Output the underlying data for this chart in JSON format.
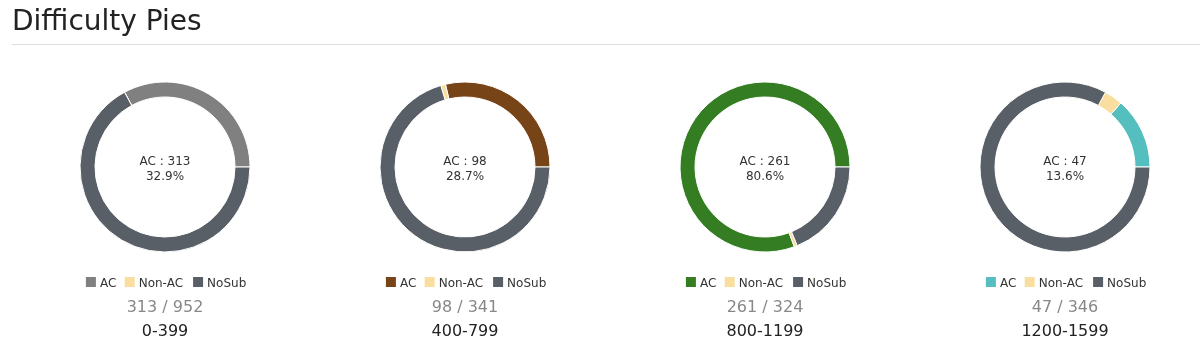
{
  "chart_data": [
    {
      "type": "donut",
      "title": "0-399",
      "categories": [
        "AC",
        "Non-AC",
        "NoSub"
      ],
      "values": [
        32.9,
        0,
        67.1
      ],
      "colors": [
        "#808080",
        "#f9de9f",
        "#595f66"
      ],
      "legend": "bottom",
      "annotations": [
        "Difficulty Pies",
        "AC : 313",
        "32.9%",
        "313 / 952"
      ]
    },
    {
      "type": "donut",
      "title": "400-799",
      "categories": [
        "AC",
        "Non-AC",
        "NoSub"
      ],
      "values": [
        28.7,
        0.9,
        70.4
      ],
      "colors": [
        "#774417",
        "#f9de9f",
        "#595f66"
      ],
      "legend": "bottom",
      "annotations": [
        "AC : 98",
        "28.7%",
        "98 / 341"
      ]
    },
    {
      "type": "donut",
      "title": "800-1199",
      "categories": [
        "AC",
        "Non-AC",
        "NoSub"
      ],
      "values": [
        80.6,
        0.6,
        18.8
      ],
      "colors": [
        "#357d22",
        "#f9de9f",
        "#595f66"
      ],
      "legend": "bottom",
      "annotations": [
        "AC : 261",
        "80.6%",
        "261 / 324"
      ]
    },
    {
      "type": "donut",
      "title": "1200-1599",
      "categories": [
        "AC",
        "Non-AC",
        "NoSub"
      ],
      "values": [
        13.6,
        3.5,
        82.9
      ],
      "colors": [
        "#55bfc0",
        "#f9de9f",
        "#595f66"
      ],
      "legend": "bottom",
      "annotations": [
        "AC : 47",
        "13.6%",
        "47 / 346"
      ]
    }
  ]
}
